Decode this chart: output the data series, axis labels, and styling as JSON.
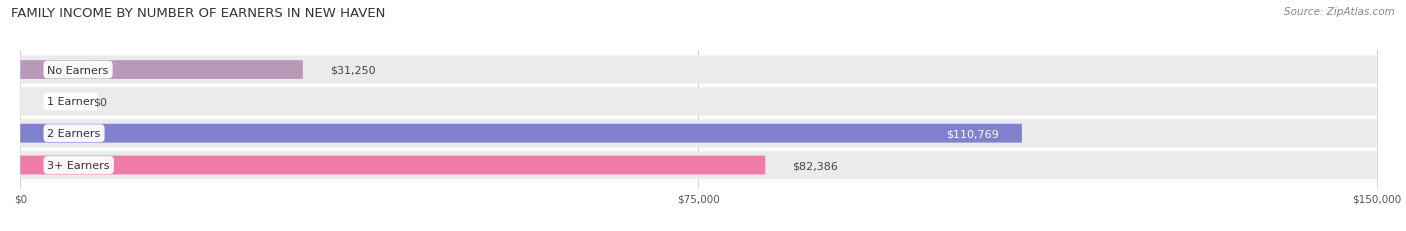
{
  "title": "FAMILY INCOME BY NUMBER OF EARNERS IN NEW HAVEN",
  "source": "Source: ZipAtlas.com",
  "categories": [
    "No Earners",
    "1 Earner",
    "2 Earners",
    "3+ Earners"
  ],
  "values": [
    31250,
    0,
    110769,
    82386
  ],
  "value_labels": [
    "$31,250",
    "$0",
    "$110,769",
    "$82,386"
  ],
  "bar_colors": [
    "#b89ab8",
    "#74ccc8",
    "#8080cc",
    "#f07aaa"
  ],
  "row_bg_color": "#ebebeb",
  "xlim_max": 150000,
  "xticks": [
    0,
    75000,
    150000
  ],
  "xticklabels": [
    "$0",
    "$75,000",
    "$150,000"
  ],
  "title_fontsize": 9.5,
  "source_fontsize": 7.5,
  "label_fontsize": 8,
  "value_fontsize": 8,
  "bg_color": "#ffffff"
}
